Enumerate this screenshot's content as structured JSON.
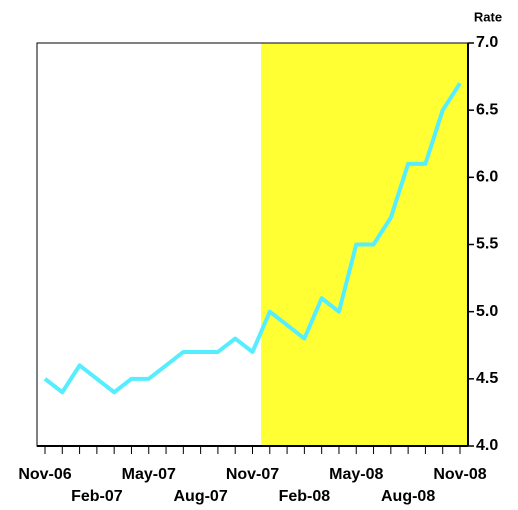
{
  "chart_data": {
    "type": "line",
    "y_axis_label": "Rate",
    "categories": [
      "Nov-06",
      null,
      null,
      "Feb-07",
      null,
      null,
      "May-07",
      null,
      null,
      "Aug-07",
      null,
      null,
      "Nov-07",
      null,
      null,
      "Feb-08",
      null,
      null,
      "May-08",
      null,
      null,
      "Aug-08",
      null,
      null,
      "Nov-08"
    ],
    "series": [
      {
        "color": "#55eeff",
        "values": [
          4.5,
          4.4,
          4.6,
          4.5,
          4.4,
          4.5,
          4.5,
          4.6,
          4.7,
          4.7,
          4.7,
          4.8,
          4.7,
          5.0,
          4.9,
          4.8,
          5.1,
          5.0,
          5.5,
          5.5,
          5.7,
          6.1,
          6.1,
          6.5,
          6.7
        ]
      }
    ],
    "ylim": [
      4,
      7
    ],
    "yticks": [
      {
        "value": 4,
        "label": "4.0"
      },
      4.5,
      {
        "value": 5,
        "label": "5.0"
      },
      5.5,
      {
        "value": 6,
        "label": "6.0"
      },
      6.5,
      {
        "value": 7,
        "label": "7.0"
      }
    ],
    "y_axis_side": "right",
    "highlight_color": "#ffff33"
  }
}
